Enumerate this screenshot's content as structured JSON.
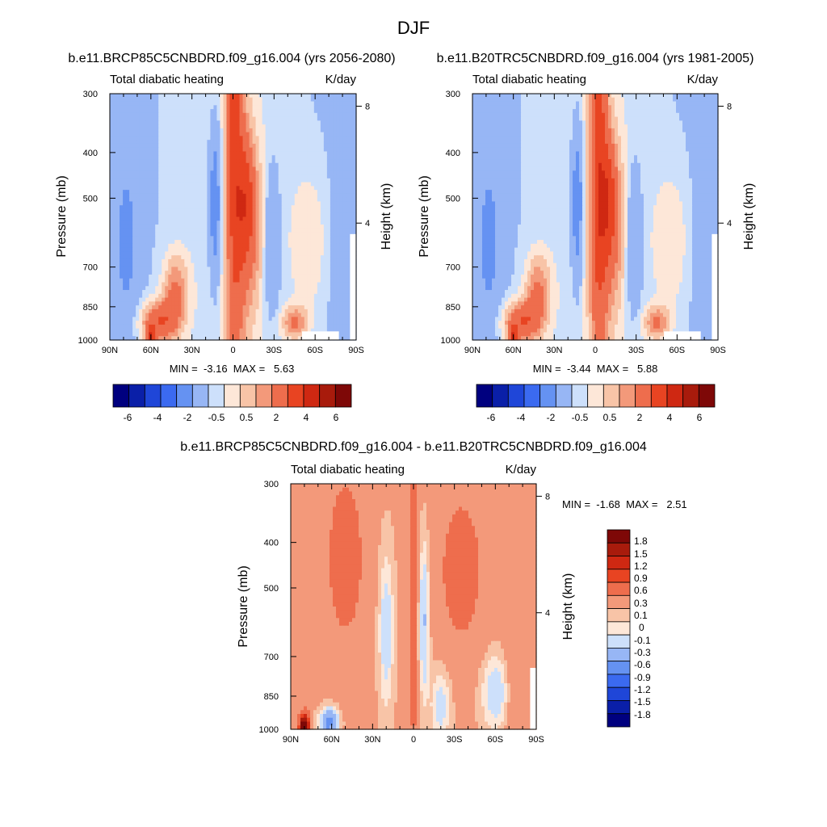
{
  "figure": {
    "title": "DJF"
  },
  "colors": {
    "colormap_12": [
      "#00007f",
      "#0a1fa8",
      "#1f46d8",
      "#3b6af0",
      "#6592f2",
      "#97b6f5",
      "#cde0fb",
      "#fde7d8",
      "#f8c4a7",
      "#f3997a",
      "#ee6d4d",
      "#e84422",
      "#cf2812",
      "#a81b0c",
      "#7e0807"
    ],
    "diff_levels_colors": [
      "#00007f",
      "#0a1fa8",
      "#1f46d8",
      "#3b6af0",
      "#6592f2",
      "#97b6f5",
      "#cde0fb",
      "#fde7d8",
      "#f8c4a7",
      "#f3997a",
      "#ee6d4d",
      "#e84422",
      "#cf2812",
      "#a81b0c",
      "#7e0807"
    ]
  },
  "chart_data": [
    {
      "id": "rcp85",
      "type": "heatmap",
      "title": "b.e11.BRCP85C5CNBDRD.f09_g16.004 (yrs 2056-2080)",
      "left_label": "Total diabatic heating",
      "right_label": "K/day",
      "ylabel": "Pressure (mb)",
      "ylabel_right": "Height (km)",
      "x_ticks": [
        "90N",
        "60N",
        "30N",
        "0",
        "30S",
        "60S",
        "90S"
      ],
      "x_values": [
        90,
        60,
        30,
        0,
        -30,
        -60,
        -90
      ],
      "y_ticks": [
        "300",
        "400",
        "500",
        "700",
        "850",
        "1000"
      ],
      "y_values": [
        300,
        400,
        500,
        700,
        850,
        1000
      ],
      "height_ticks": [
        "8",
        "4"
      ],
      "height_values": [
        8,
        4
      ],
      "ylim": [
        300,
        1000
      ],
      "xlim": [
        90,
        -90
      ],
      "min_max_text": "MIN =  -3.16  MAX =   5.63",
      "min": -3.16,
      "max": 5.63,
      "colorbar_labels": [
        "-6",
        "-4",
        "-2",
        "-0.5",
        "0.5",
        "2",
        "4",
        "6"
      ],
      "shift": 0
    },
    {
      "id": "b20tr",
      "type": "heatmap",
      "title": "b.e11.B20TRC5CNBDRD.f09_g16.004 (yrs 1981-2005)",
      "left_label": "Total diabatic heating",
      "right_label": "K/day",
      "ylabel": "Pressure (mb)",
      "ylabel_right": "Height (km)",
      "x_ticks": [
        "90N",
        "60N",
        "30N",
        "0",
        "30S",
        "60S",
        "90S"
      ],
      "x_values": [
        90,
        60,
        30,
        0,
        -30,
        -60,
        -90
      ],
      "y_ticks": [
        "300",
        "400",
        "500",
        "700",
        "850",
        "1000"
      ],
      "y_values": [
        300,
        400,
        500,
        700,
        850,
        1000
      ],
      "height_ticks": [
        "8",
        "4"
      ],
      "height_values": [
        8,
        4
      ],
      "ylim": [
        300,
        1000
      ],
      "xlim": [
        90,
        -90
      ],
      "min_max_text": "MIN =  -3.44  MAX =   5.88",
      "min": -3.44,
      "max": 5.88,
      "colorbar_labels": [
        "-6",
        "-4",
        "-2",
        "-0.5",
        "0.5",
        "2",
        "4",
        "6"
      ],
      "shift": 1
    },
    {
      "id": "diff",
      "type": "heatmap",
      "title": "b.e11.BRCP85C5CNBDRD.f09_g16.004 - b.e11.B20TRC5CNBDRD.f09_g16.004",
      "left_label": "Total diabatic heating",
      "right_label": "K/day",
      "ylabel": "Pressure (mb)",
      "ylabel_right": "Height (km)",
      "x_ticks": [
        "90N",
        "60N",
        "30N",
        "0",
        "30S",
        "60S",
        "90S"
      ],
      "x_values": [
        90,
        60,
        30,
        0,
        -30,
        -60,
        -90
      ],
      "y_ticks": [
        "300",
        "400",
        "500",
        "700",
        "850",
        "1000"
      ],
      "y_values": [
        300,
        400,
        500,
        700,
        850,
        1000
      ],
      "height_ticks": [
        "8",
        "4"
      ],
      "height_values": [
        8,
        4
      ],
      "ylim": [
        300,
        1000
      ],
      "xlim": [
        90,
        -90
      ],
      "min_max_text": "MIN =  -1.68  MAX =   2.51",
      "min": -1.68,
      "max": 2.51,
      "colorbar_labels": [
        "1.8",
        "1.5",
        "1.2",
        "0.9",
        "0.6",
        "0.3",
        "0.1",
        "0",
        "-0.1",
        "-0.3",
        "-0.6",
        "-0.9",
        "-1.2",
        "-1.5",
        "-1.8"
      ]
    }
  ]
}
